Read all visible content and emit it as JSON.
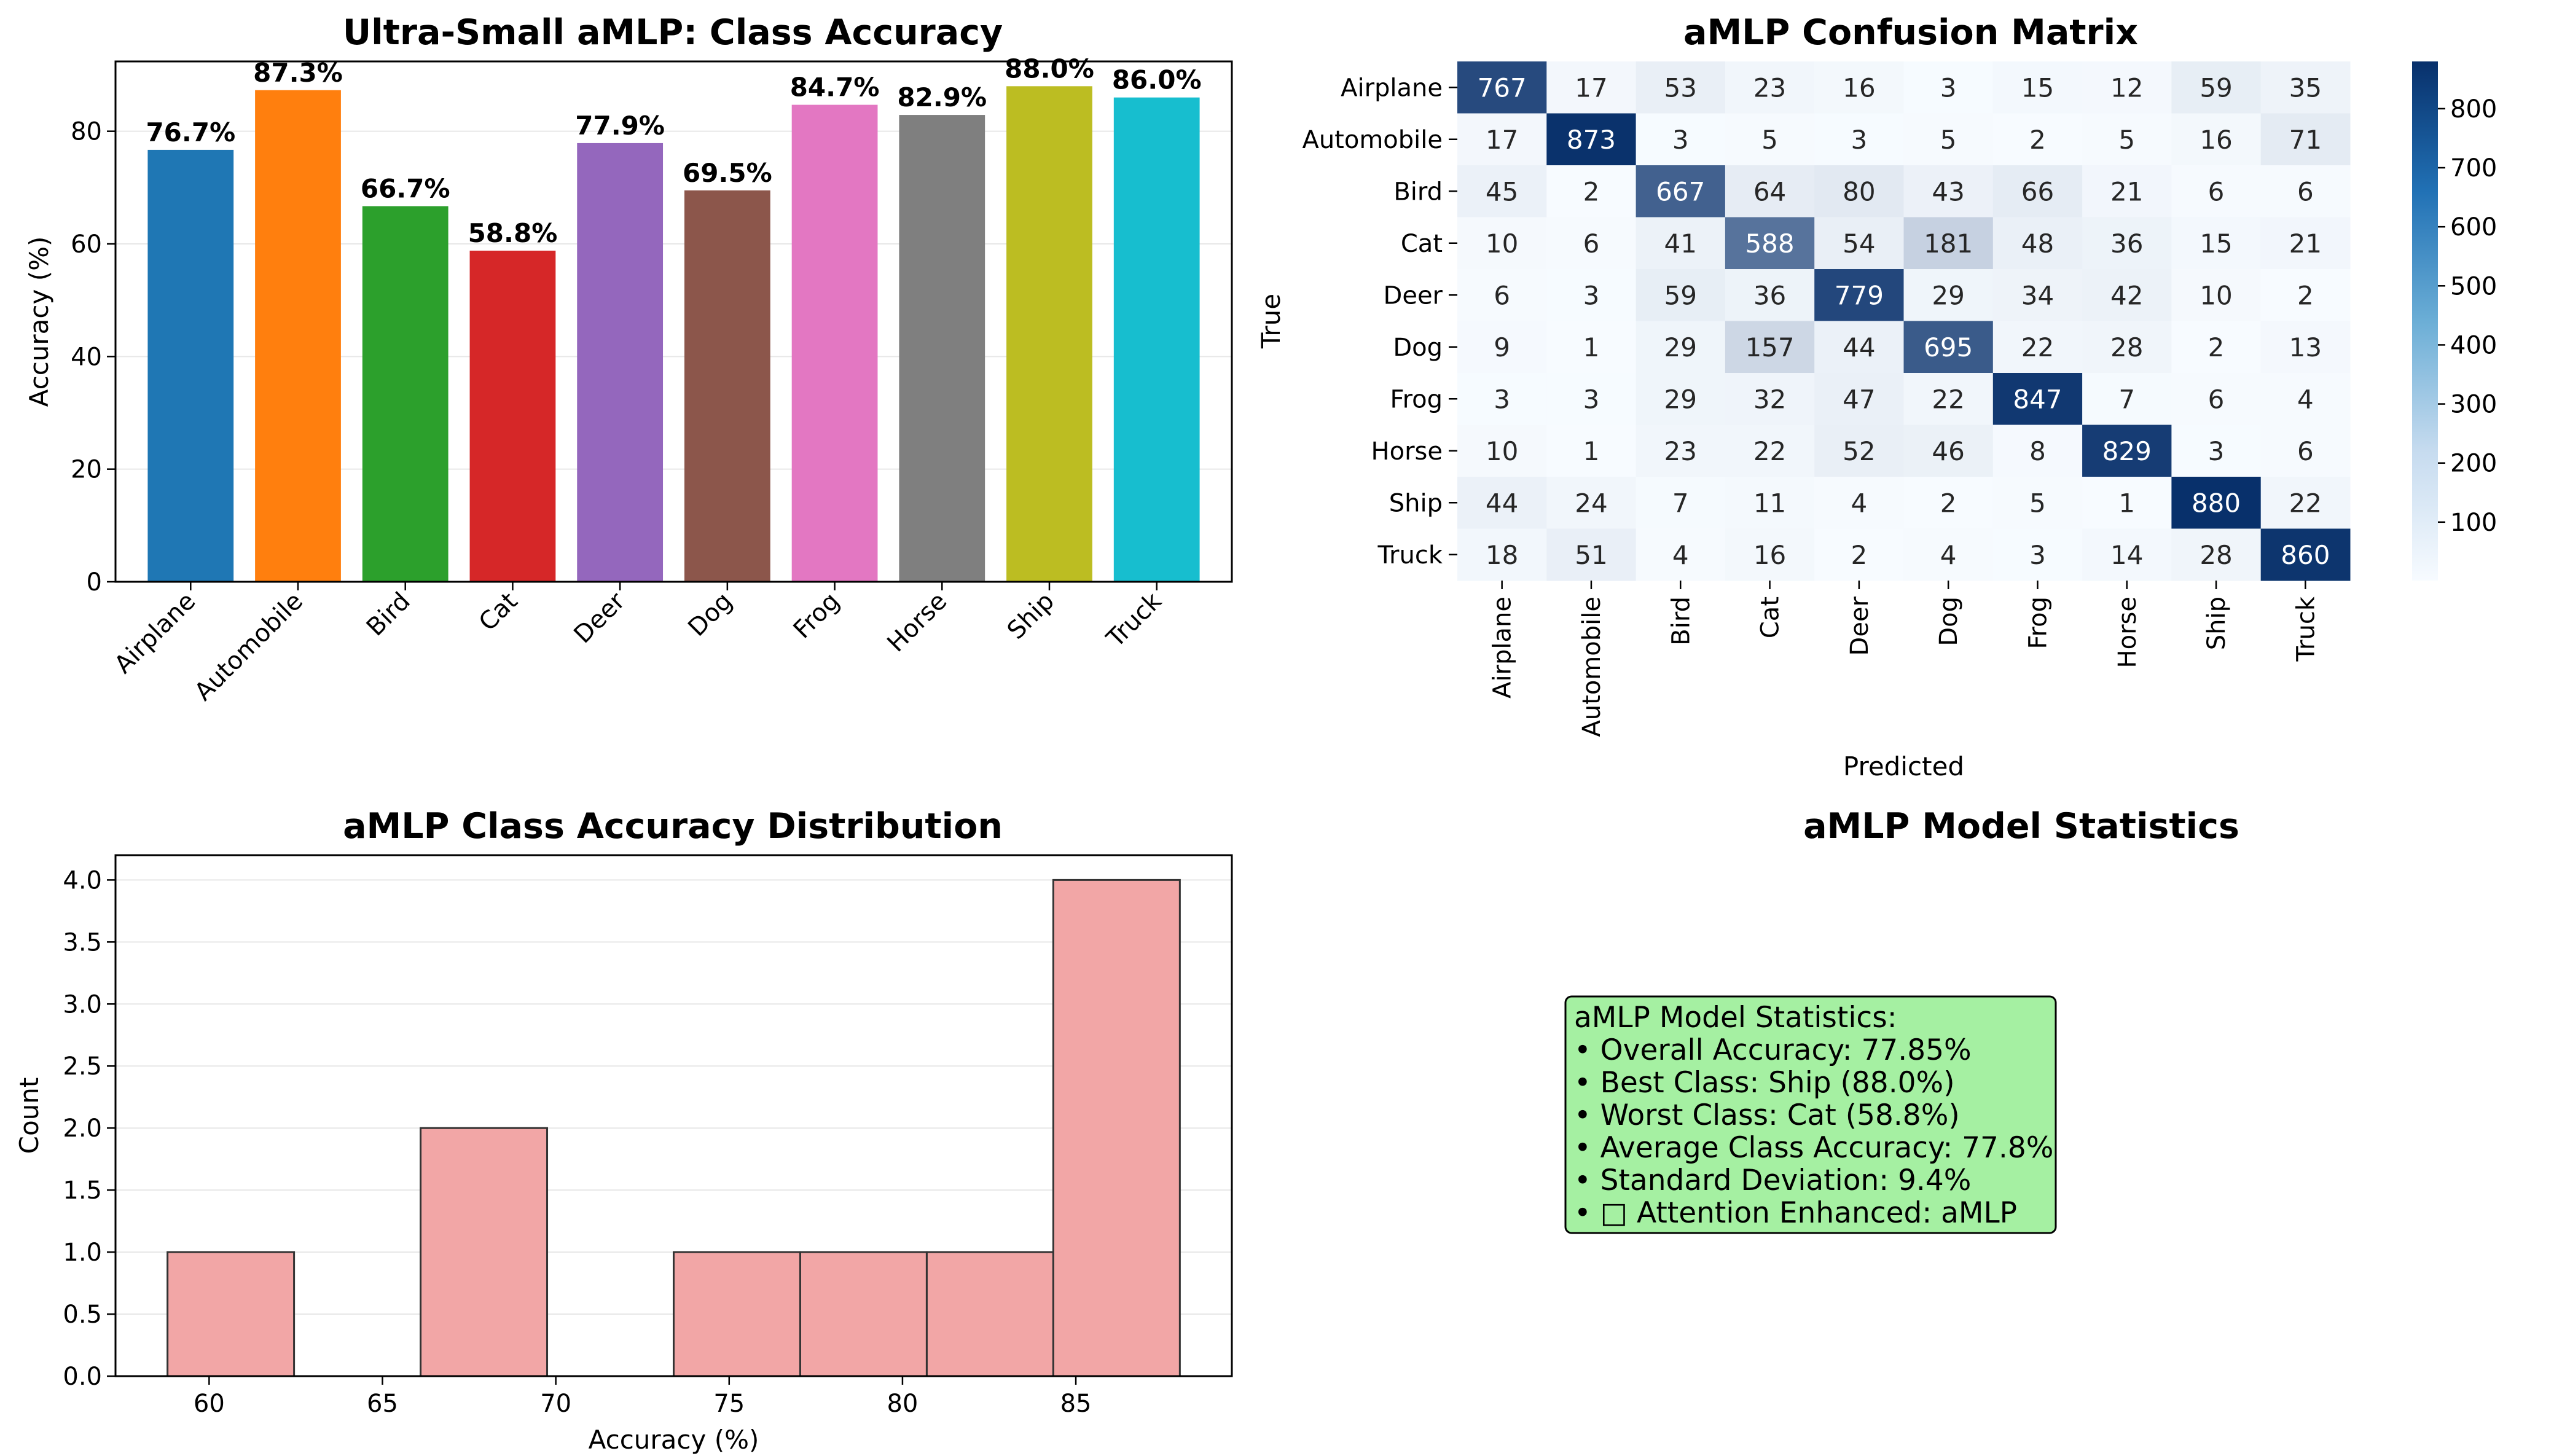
{
  "figure": {
    "titles": {
      "accuracy": "Ultra-Small aMLP: Class Accuracy",
      "confusion": "aMLP Confusion Matrix",
      "distribution": "aMLP Class Accuracy Distribution",
      "stats": "aMLP Model Statistics"
    }
  },
  "colors": {
    "bars": [
      "#1f77b4",
      "#ff7f0e",
      "#2ca02c",
      "#d62728",
      "#9467bd",
      "#8c564b",
      "#e377c2",
      "#7f7f7f",
      "#bcbd22",
      "#17becf"
    ],
    "hist_fill": "#f2a6a6",
    "stats_box": "#a5f0a2",
    "cmap_low": "#f7fbff",
    "cmap_high": "#08306b"
  },
  "chart_data": [
    {
      "type": "bar",
      "title": "Ultra-Small aMLP: Class Accuracy",
      "ylabel": "Accuracy (%)",
      "xlabel": "",
      "categories": [
        "Airplane",
        "Automobile",
        "Bird",
        "Cat",
        "Deer",
        "Dog",
        "Frog",
        "Horse",
        "Ship",
        "Truck"
      ],
      "values": [
        76.7,
        87.3,
        66.7,
        58.8,
        77.9,
        69.5,
        84.7,
        82.9,
        88.0,
        86.0
      ],
      "data_labels": [
        "76.7%",
        "87.3%",
        "66.7%",
        "58.8%",
        "77.9%",
        "69.5%",
        "84.7%",
        "82.9%",
        "88.0%",
        "86.0%"
      ],
      "ylim": [
        0,
        92.4
      ],
      "yticks": [
        0,
        20,
        40,
        60,
        80
      ],
      "grid": "horizontal"
    },
    {
      "type": "heatmap",
      "title": "aMLP Confusion Matrix",
      "xlabel": "Predicted",
      "ylabel": "True",
      "x_categories": [
        "Airplane",
        "Automobile",
        "Bird",
        "Cat",
        "Deer",
        "Dog",
        "Frog",
        "Horse",
        "Ship",
        "Truck"
      ],
      "y_categories": [
        "Airplane",
        "Automobile",
        "Bird",
        "Cat",
        "Deer",
        "Dog",
        "Frog",
        "Horse",
        "Ship",
        "Truck"
      ],
      "matrix": [
        [
          767,
          17,
          53,
          23,
          16,
          3,
          15,
          12,
          59,
          35
        ],
        [
          17,
          873,
          3,
          5,
          3,
          5,
          2,
          5,
          16,
          71
        ],
        [
          45,
          2,
          667,
          64,
          80,
          43,
          66,
          21,
          6,
          6
        ],
        [
          10,
          6,
          41,
          588,
          54,
          181,
          48,
          36,
          15,
          21
        ],
        [
          6,
          3,
          59,
          36,
          779,
          29,
          34,
          42,
          10,
          2
        ],
        [
          9,
          1,
          29,
          157,
          44,
          695,
          22,
          28,
          2,
          13
        ],
        [
          3,
          3,
          29,
          32,
          47,
          22,
          847,
          7,
          6,
          4
        ],
        [
          10,
          1,
          23,
          22,
          52,
          46,
          8,
          829,
          3,
          6
        ],
        [
          44,
          24,
          7,
          11,
          4,
          2,
          5,
          1,
          880,
          22
        ],
        [
          18,
          51,
          4,
          16,
          2,
          4,
          3,
          14,
          28,
          860
        ]
      ],
      "colorbar": {
        "min": 1,
        "max": 880,
        "ticks": [
          100,
          200,
          300,
          400,
          500,
          600,
          700,
          800
        ]
      },
      "colormap": "Blues"
    },
    {
      "type": "bar",
      "subtype": "histogram",
      "title": "aMLP Class Accuracy Distribution",
      "xlabel": "Accuracy (%)",
      "ylabel": "Count",
      "bins": [
        {
          "start": 58.8,
          "end": 62.45,
          "count": 1
        },
        {
          "start": 62.45,
          "end": 66.1,
          "count": 0
        },
        {
          "start": 66.1,
          "end": 69.75,
          "count": 2
        },
        {
          "start": 69.75,
          "end": 73.4,
          "count": 0
        },
        {
          "start": 73.4,
          "end": 77.05,
          "count": 1
        },
        {
          "start": 77.05,
          "end": 80.7,
          "count": 1
        },
        {
          "start": 80.7,
          "end": 84.35,
          "count": 1
        },
        {
          "start": 84.35,
          "end": 88.0,
          "count": 4
        }
      ],
      "xlim": [
        57.3,
        89.5
      ],
      "ylim": [
        0,
        4.2
      ],
      "xticks": [
        60,
        65,
        70,
        75,
        80,
        85
      ],
      "yticks": [
        0.0,
        0.5,
        1.0,
        1.5,
        2.0,
        2.5,
        3.0,
        3.5,
        4.0
      ],
      "grid": "horizontal"
    }
  ],
  "stats_panel": {
    "title": "aMLP Model Statistics",
    "lines": [
      "aMLP Model Statistics:",
      "• Overall Accuracy: 77.85%",
      "• Best Class: Ship (88.0%)",
      "• Worst Class: Cat (58.8%)",
      "• Average Class Accuracy: 77.8%",
      "• Standard Deviation: 9.4%",
      "• □ Attention Enhanced: aMLP"
    ]
  }
}
